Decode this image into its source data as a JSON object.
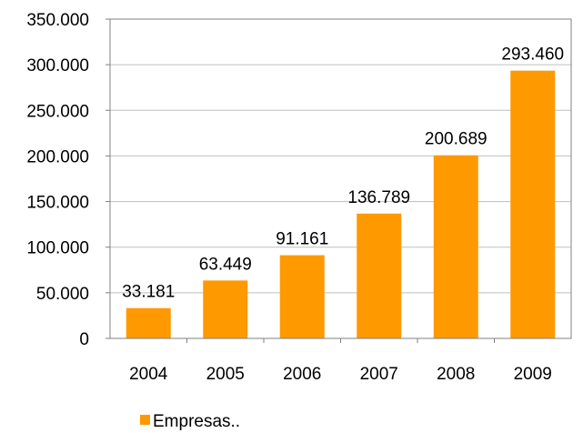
{
  "chart_data": {
    "type": "bar",
    "categories": [
      "2004",
      "2005",
      "2006",
      "2007",
      "2008",
      "2009"
    ],
    "series": [
      {
        "name": "Empresas..",
        "values": [
          33181,
          63449,
          91161,
          136789,
          200689,
          293460
        ],
        "labels": [
          "33.181",
          "63.449",
          "91.161",
          "136.789",
          "200.689",
          "293.460"
        ],
        "color": "#FF9900"
      }
    ],
    "ylim": [
      0,
      350000
    ],
    "yticks": [
      0,
      50000,
      100000,
      150000,
      200000,
      250000,
      300000,
      350000
    ],
    "ytick_labels": [
      "0",
      "50.000",
      "100.000",
      "150.000",
      "200.000",
      "250.000",
      "300.000",
      "350.000"
    ],
    "grid": true,
    "legend": "bottom-left",
    "colors": {
      "bar": "#FF9900",
      "grid": "#BFBFBF",
      "axis": "#808080",
      "frame": "#808080",
      "text": "#000000"
    }
  }
}
